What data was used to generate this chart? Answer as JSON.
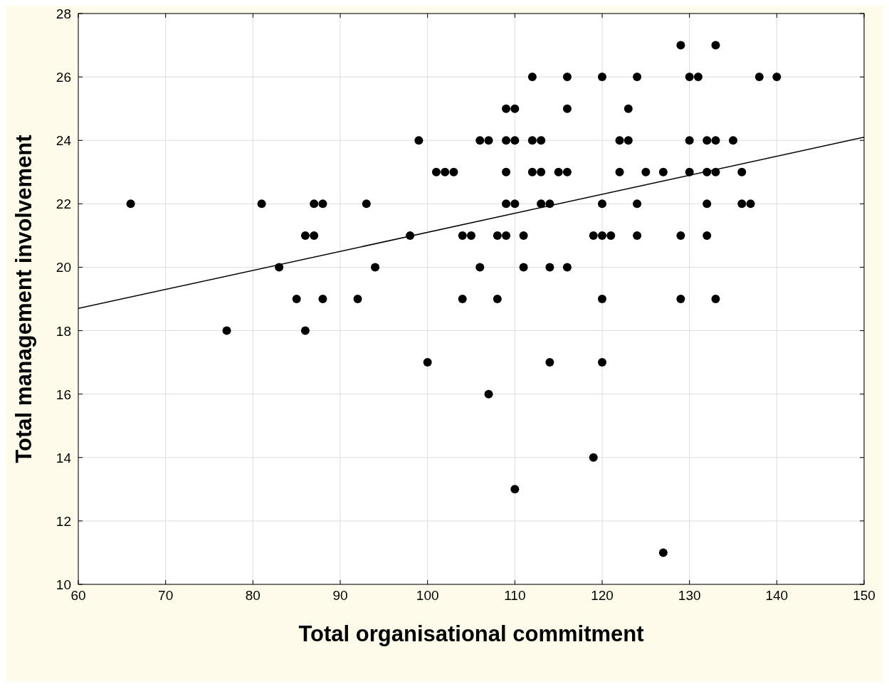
{
  "chart_data": {
    "type": "scatter",
    "xlabel": "Total organisational commitment",
    "ylabel": "Total management involvement",
    "xlim": [
      60,
      150
    ],
    "xticks": [
      60,
      70,
      80,
      90,
      100,
      110,
      120,
      130,
      140,
      150
    ],
    "ylim": [
      10,
      28
    ],
    "yticks": [
      10,
      12,
      14,
      16,
      18,
      20,
      22,
      24,
      26,
      28
    ],
    "grid": true,
    "marker": "circle",
    "series": [
      {
        "color": "#000000",
        "x": [
          66,
          77,
          81,
          83,
          85,
          86,
          87,
          87,
          88,
          86,
          88,
          92,
          93,
          94,
          98,
          99,
          100,
          101,
          102,
          103,
          104,
          105,
          104,
          106,
          106,
          107,
          107,
          108,
          109,
          108,
          109,
          110,
          109,
          110,
          109,
          109,
          110,
          111,
          111,
          110,
          112,
          112,
          113,
          112,
          113,
          113,
          114,
          114,
          114,
          115,
          116,
          116,
          116,
          116,
          119,
          119,
          120,
          120,
          120,
          121,
          120,
          120,
          122,
          122,
          123,
          123,
          124,
          124,
          124,
          125,
          127,
          127,
          129,
          129,
          129,
          130,
          131,
          130,
          130,
          132,
          133,
          132,
          133,
          132,
          132,
          133,
          133,
          135,
          136,
          136,
          137,
          138,
          140
        ],
        "values": [
          22,
          18,
          22,
          20,
          19,
          21,
          21,
          22,
          22,
          18,
          19,
          19,
          22,
          20,
          21,
          24,
          17,
          23,
          23,
          23,
          21,
          21,
          19,
          20,
          24,
          24,
          16,
          21,
          21,
          19,
          25,
          25,
          24,
          24,
          23,
          22,
          22,
          21,
          20,
          13,
          26,
          24,
          24,
          23,
          23,
          22,
          22,
          20,
          17,
          23,
          23,
          26,
          25,
          20,
          21,
          14,
          26,
          22,
          21,
          21,
          19,
          17,
          23,
          24,
          24,
          25,
          26,
          22,
          21,
          23,
          23,
          11,
          27,
          21,
          19,
          26,
          26,
          24,
          23,
          24,
          24,
          23,
          23,
          22,
          21,
          27,
          19,
          24,
          23,
          22,
          22,
          26,
          26
        ]
      },
      {
        "type": "line",
        "color": "#000000",
        "marker": "none",
        "x": [
          60,
          150
        ],
        "values": [
          18.7,
          24.1
        ]
      }
    ]
  }
}
